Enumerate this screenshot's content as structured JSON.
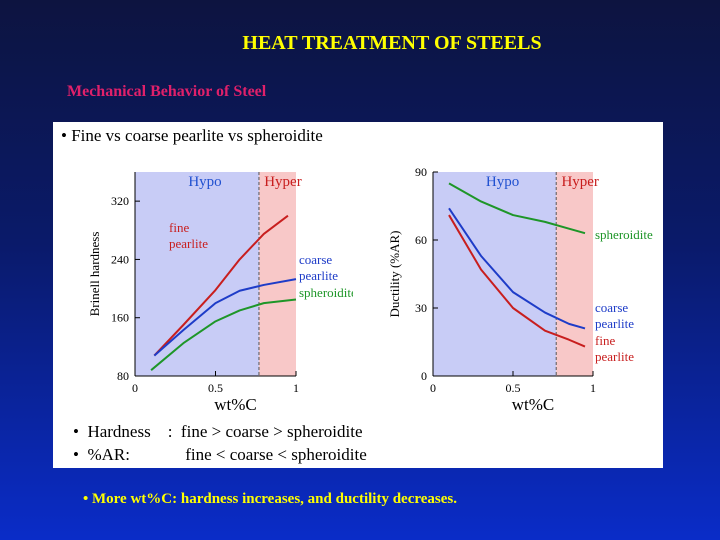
{
  "slide": {
    "title": "HEAT TREATMENT OF STEELS",
    "subtitle": "Mechanical Behavior of Steel",
    "panel_heading": "•  Fine vs coarse pearlite vs spheroidite",
    "bullets": [
      "•  Hardness    :  fine > coarse > spheroidite",
      "•  %AR:             fine < coarse < spheroidite"
    ],
    "footer": "• More wt%C: hardness increases, and ductility decreases."
  },
  "colors": {
    "hypo_region": "#c8ccf6",
    "hyper_region": "#f8c8c8",
    "fine": "#c81e1e",
    "coarse": "#1e3cc8",
    "spheroidite": "#1e9628",
    "hypo_label": "#2050d0",
    "hyper_label": "#c81e1e"
  },
  "chart_data": [
    {
      "type": "line",
      "xlabel": "wt%C",
      "ylabel": "Brinell hardness",
      "xlim": [
        0,
        1
      ],
      "ylim": [
        80,
        360
      ],
      "x_ticks": [
        "0",
        "0.5",
        "1"
      ],
      "x_tick_values": [
        0,
        0.5,
        1
      ],
      "y_ticks": [
        "80",
        "160",
        "240",
        "320"
      ],
      "y_tick_values": [
        80,
        160,
        240,
        320
      ],
      "regions": [
        {
          "label": "Hypo",
          "from": 0,
          "to": 0.77
        },
        {
          "label": "Hyper",
          "from": 0.77,
          "to": 1
        }
      ],
      "series": [
        {
          "name": "fine pearlite",
          "label_lines": [
            "fine",
            "pearlite"
          ],
          "color_key": "fine",
          "x": [
            0.12,
            0.3,
            0.5,
            0.65,
            0.8,
            0.95
          ],
          "y": [
            108,
            150,
            198,
            240,
            275,
            300
          ]
        },
        {
          "name": "coarse pearlite",
          "label_lines": [
            "coarse",
            "pearlite"
          ],
          "color_key": "coarse",
          "x": [
            0.12,
            0.3,
            0.5,
            0.65,
            0.8,
            1.0
          ],
          "y": [
            108,
            143,
            180,
            197,
            205,
            213
          ]
        },
        {
          "name": "spheroidite",
          "label_lines": [
            "spheroidite"
          ],
          "color_key": "spheroidite",
          "x": [
            0.1,
            0.3,
            0.5,
            0.65,
            0.8,
            1.0
          ],
          "y": [
            88,
            125,
            155,
            170,
            180,
            185
          ]
        }
      ]
    },
    {
      "type": "line",
      "xlabel": "wt%C",
      "ylabel": "Ductility (%AR)",
      "xlim": [
        0,
        1
      ],
      "ylim": [
        0,
        90
      ],
      "x_ticks": [
        "0",
        "0.5",
        "1"
      ],
      "x_tick_values": [
        0,
        0.5,
        1
      ],
      "y_ticks": [
        "0",
        "30",
        "60",
        "90"
      ],
      "y_tick_values": [
        0,
        30,
        60,
        90
      ],
      "regions": [
        {
          "label": "Hypo",
          "from": 0,
          "to": 0.77
        },
        {
          "label": "Hyper",
          "from": 0.77,
          "to": 1
        }
      ],
      "series": [
        {
          "name": "spheroidite",
          "label_lines": [
            "spheroidite"
          ],
          "color_key": "spheroidite",
          "x": [
            0.1,
            0.3,
            0.5,
            0.7,
            0.85,
            0.95
          ],
          "y": [
            85,
            77,
            71,
            68,
            65,
            63
          ]
        },
        {
          "name": "coarse pearlite",
          "label_lines": [
            "coarse",
            "pearlite"
          ],
          "color_key": "coarse",
          "x": [
            0.1,
            0.3,
            0.5,
            0.7,
            0.85,
            0.95
          ],
          "y": [
            74,
            53,
            37,
            28,
            23,
            21
          ]
        },
        {
          "name": "fine pearlite",
          "label_lines": [
            "fine",
            "pearlite"
          ],
          "color_key": "fine",
          "x": [
            0.1,
            0.3,
            0.5,
            0.7,
            0.85,
            0.95
          ],
          "y": [
            71,
            47,
            30,
            20,
            16,
            13
          ]
        }
      ]
    }
  ]
}
